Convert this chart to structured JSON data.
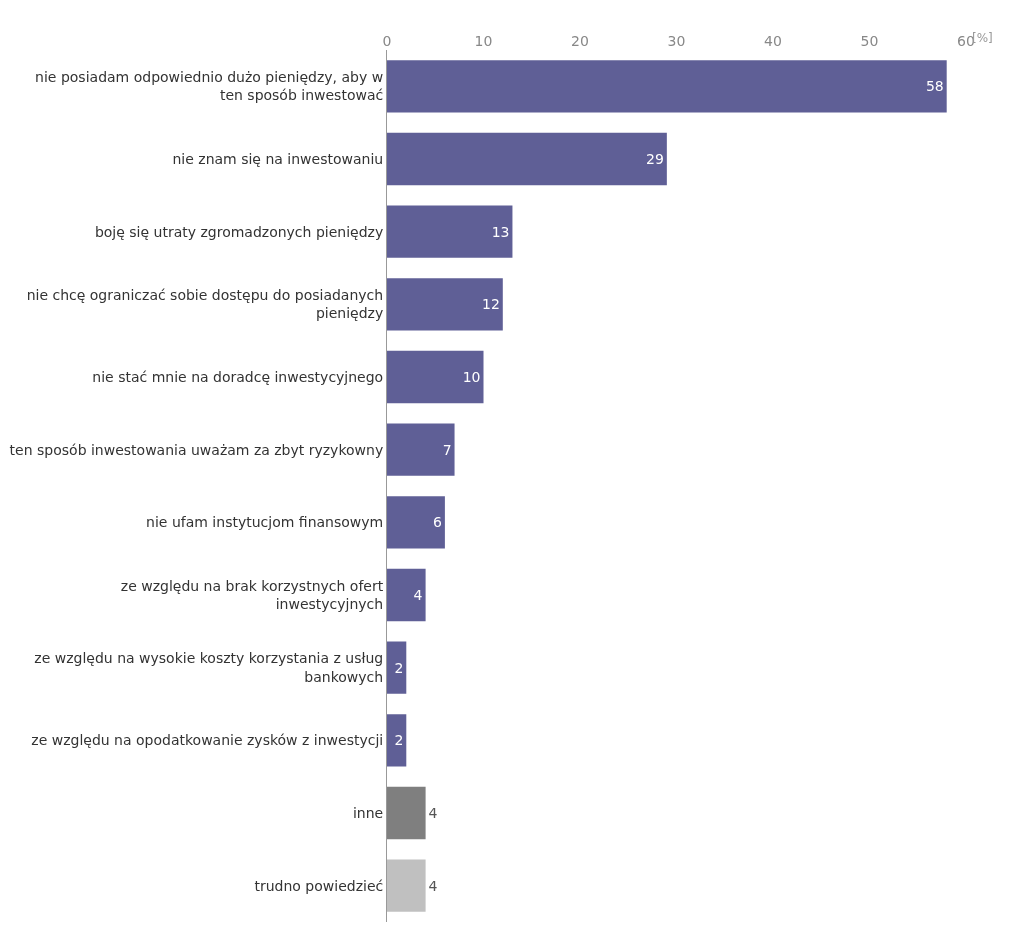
{
  "chart_data": {
    "type": "bar",
    "orientation": "horizontal",
    "categories": [
      "nie posiadam odpowiednio dużo pieniędzy, aby w ten sposób inwestować",
      "nie znam się na inwestowaniu",
      "boję się utraty zgromadzonych pieniędzy",
      "nie chcę ograniczać sobie dostępu do posiadanych pieniędzy",
      "nie stać mnie na doradcę inwestycyjnego",
      "ten sposób inwestowania uważam za zbyt ryzykowny",
      "nie ufam instytucjom finansowym",
      "ze względu na brak korzystnych ofert inwestycyjnych",
      "ze względu na wysokie koszty korzystania z usług bankowych",
      "ze względu na opodatkowanie zysków z inwestycji",
      "inne",
      "trudno powiedzieć"
    ],
    "values": [
      58,
      29,
      13,
      12,
      10,
      7,
      6,
      4,
      2,
      2,
      4,
      4
    ],
    "colors": [
      "#5f5f96",
      "#5f5f96",
      "#5f5f96",
      "#5f5f96",
      "#5f5f96",
      "#5f5f96",
      "#5f5f96",
      "#5f5f96",
      "#5f5f96",
      "#5f5f96",
      "#7f7f7f",
      "#c0c0c0"
    ],
    "xlabel": "[%]",
    "xlim": [
      0,
      60
    ],
    "xticks": [
      0,
      10,
      20,
      30,
      40,
      50,
      60
    ],
    "data_labels": true
  }
}
